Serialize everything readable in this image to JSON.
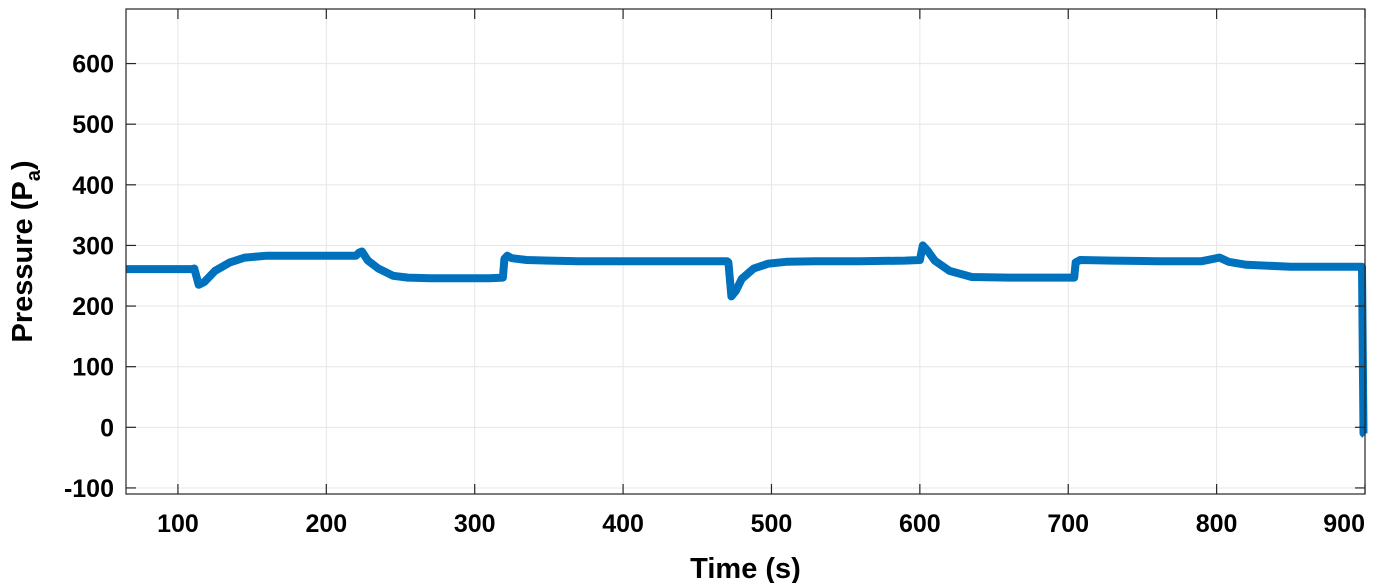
{
  "chart_data": {
    "type": "line",
    "title": "",
    "xlabel": "Time (s)",
    "ylabel": {
      "main": "Pressure (P",
      "sub": "a",
      "close": ")"
    },
    "xlim": [
      65,
      900
    ],
    "ylim": [
      -110,
      690
    ],
    "xticks": [
      100,
      200,
      300,
      400,
      500,
      600,
      700,
      800,
      900
    ],
    "xtick_labels": [
      "100",
      "200",
      "300",
      "400",
      "500",
      "600",
      "700",
      "800",
      "900"
    ],
    "yticks": [
      -100,
      0,
      100,
      200,
      300,
      400,
      500,
      600
    ],
    "ytick_labels": [
      "-100",
      "0",
      "100",
      "200",
      "300",
      "400",
      "500",
      "600"
    ],
    "grid": true,
    "legend": "none",
    "series": [
      {
        "color": "#0072BD",
        "x": [
          65,
          80,
          100,
          110,
          111,
          114,
          118,
          125,
          135,
          145,
          160,
          180,
          200,
          220,
          222,
          224,
          228,
          235,
          245,
          255,
          270,
          290,
          310,
          319,
          320,
          322,
          325,
          335,
          350,
          370,
          400,
          430,
          460,
          470,
          471,
          473,
          476,
          480,
          488,
          498,
          510,
          530,
          560,
          590,
          600,
          602,
          605,
          610,
          620,
          635,
          660,
          690,
          704,
          705,
          708,
          730,
          760,
          790,
          798,
          802,
          808,
          820,
          850,
          880,
          898,
          899,
          900
        ],
        "y": [
          261,
          261,
          261,
          261,
          262,
          235,
          240,
          258,
          272,
          280,
          283,
          283,
          283,
          283,
          288,
          290,
          275,
          262,
          250,
          247,
          246,
          246,
          246,
          247,
          278,
          283,
          279,
          276,
          275,
          274,
          274,
          274,
          274,
          274,
          272,
          216,
          225,
          245,
          262,
          270,
          273,
          274,
          274,
          275,
          276,
          300,
          292,
          275,
          258,
          248,
          247,
          247,
          247,
          272,
          276,
          275,
          274,
          274,
          278,
          280,
          273,
          268,
          265,
          265,
          265,
          -10,
          -12
        ]
      }
    ]
  }
}
